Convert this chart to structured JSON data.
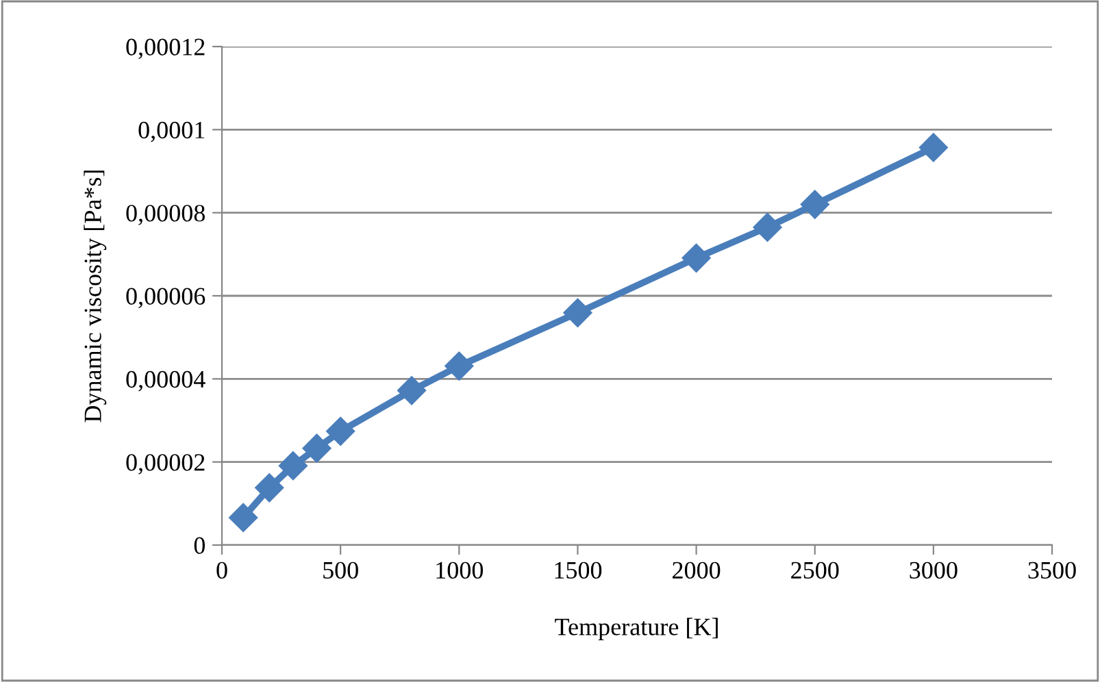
{
  "chart_data": {
    "type": "line",
    "xlabel": "Temperature [K]",
    "ylabel": "Dynamic viscosity [Pa*s]",
    "x": [
      90,
      200,
      300,
      400,
      500,
      800,
      1000,
      1500,
      2000,
      2300,
      2500,
      3000
    ],
    "series": [
      {
        "color": "#4a7ebb",
        "values": [
          6.6e-06,
          1.38e-05,
          1.91e-05,
          2.33e-05,
          2.74e-05,
          3.72e-05,
          4.31e-05,
          5.59e-05,
          6.91e-05,
          7.65e-05,
          8.2e-05,
          9.57e-05
        ]
      }
    ],
    "xlim": [
      0,
      3500
    ],
    "xticks": [
      0,
      500,
      1000,
      1500,
      2000,
      2500,
      3000,
      3500
    ],
    "ylim": [
      0,
      0.00012
    ],
    "yticks": [
      0,
      {
        "value": 2e-05,
        "label": "0,00002"
      },
      {
        "value": 4e-05,
        "label": "0,00004"
      },
      {
        "value": 6e-05,
        "label": "0,00006"
      },
      {
        "value": 8e-05,
        "label": "0,00008"
      },
      {
        "value": 0.0001,
        "label": "0,0001"
      },
      {
        "value": 0.00012,
        "label": "0,00012"
      }
    ],
    "grid": "y",
    "marker": "diamond",
    "line_style": "solid",
    "legend": false
  }
}
